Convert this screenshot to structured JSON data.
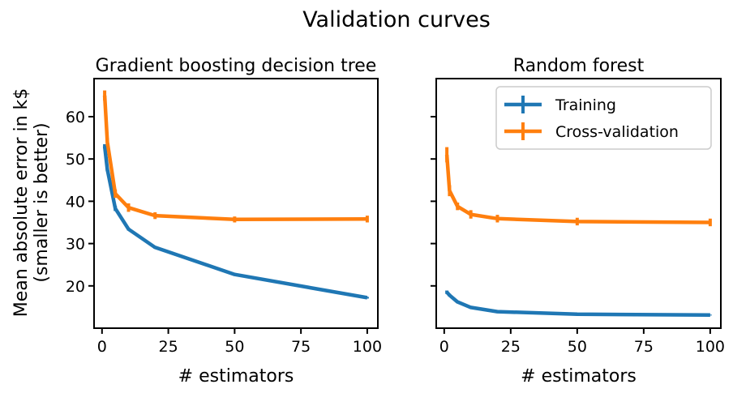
{
  "suptitle": "Validation curves",
  "ylabel_line1": "Mean absolute error in k$",
  "ylabel_line2": "(smaller is better)",
  "chart_data": [
    {
      "type": "line",
      "title": "Gradient boosting decision tree",
      "xlabel": "# estimators",
      "ylabel": "Mean absolute error in k$ (smaller is better)",
      "xlim": [
        -3,
        104
      ],
      "ylim": [
        10,
        69
      ],
      "xticks": [
        0,
        25,
        50,
        75,
        100
      ],
      "yticks": [
        20,
        30,
        40,
        50,
        60
      ],
      "show_yticklabels": true,
      "grid": false,
      "x": [
        1,
        2,
        5,
        10,
        20,
        50,
        100
      ],
      "series": [
        {
          "name": "Training",
          "color": "#1f77b4",
          "values": [
            53.0,
            47.5,
            38.3,
            33.4,
            29.1,
            22.7,
            17.2
          ],
          "errors": [
            0.5,
            0.4,
            0.6,
            0.3,
            0.3,
            0.2,
            0.2
          ]
        },
        {
          "name": "Cross-validation",
          "color": "#ff7f0e",
          "values": [
            65.0,
            54.0,
            41.8,
            38.5,
            36.6,
            35.7,
            35.8
          ],
          "errors": [
            1.2,
            0.9,
            1.0,
            1.0,
            0.8,
            0.7,
            0.8
          ]
        }
      ]
    },
    {
      "type": "line",
      "title": "Random forest",
      "xlabel": "# estimators",
      "ylabel": "",
      "xlim": [
        -3,
        104
      ],
      "ylim": [
        10,
        69
      ],
      "xticks": [
        0,
        25,
        50,
        75,
        100
      ],
      "yticks": [
        20,
        30,
        40,
        50,
        60
      ],
      "show_yticklabels": false,
      "grid": false,
      "legend": "top-right",
      "x": [
        1,
        2,
        5,
        10,
        20,
        50,
        100
      ],
      "series": [
        {
          "name": "Training",
          "color": "#1f77b4",
          "values": [
            18.5,
            17.8,
            16.2,
            14.9,
            13.9,
            13.3,
            13.1
          ],
          "errors": [
            0.4,
            0.3,
            0.2,
            0.2,
            0.1,
            0.1,
            0.1
          ]
        },
        {
          "name": "Cross-validation",
          "color": "#ff7f0e",
          "values": [
            51.0,
            42.5,
            38.8,
            36.9,
            35.9,
            35.2,
            35.0
          ],
          "errors": [
            1.8,
            1.3,
            0.9,
            1.0,
            0.9,
            0.9,
            0.9
          ]
        }
      ]
    }
  ]
}
